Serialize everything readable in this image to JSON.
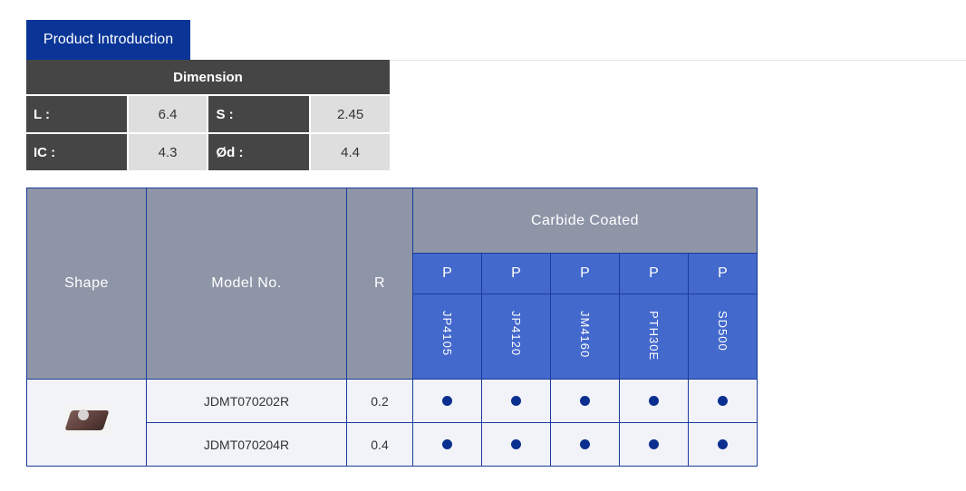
{
  "tabs": {
    "active": "Product Introduction"
  },
  "dimension": {
    "title": "Dimension",
    "rows": [
      {
        "label1": "L :",
        "value1": "6.4",
        "label2": "S :",
        "value2": "2.45"
      },
      {
        "label1": "IC :",
        "value1": "4.3",
        "label2": "Ød :",
        "value2": "4.4"
      }
    ]
  },
  "product_table": {
    "headers": {
      "shape": "Shape",
      "model": "Model No.",
      "r": "R",
      "group": "Carbide Coated",
      "grade_classes": [
        "P",
        "P",
        "P",
        "P",
        "P"
      ],
      "grades": [
        "JP4105",
        "JP4120",
        "JM4160",
        "PTH30E",
        "SD500"
      ]
    },
    "rows": [
      {
        "model": "JDMT070202R",
        "r": "0.2",
        "availability": [
          true,
          true,
          true,
          true,
          true
        ]
      },
      {
        "model": "JDMT070204R",
        "r": "0.4",
        "availability": [
          true,
          true,
          true,
          true,
          true
        ]
      }
    ],
    "shape_image": "insert-image",
    "dot_color": "#0a2f8f"
  }
}
